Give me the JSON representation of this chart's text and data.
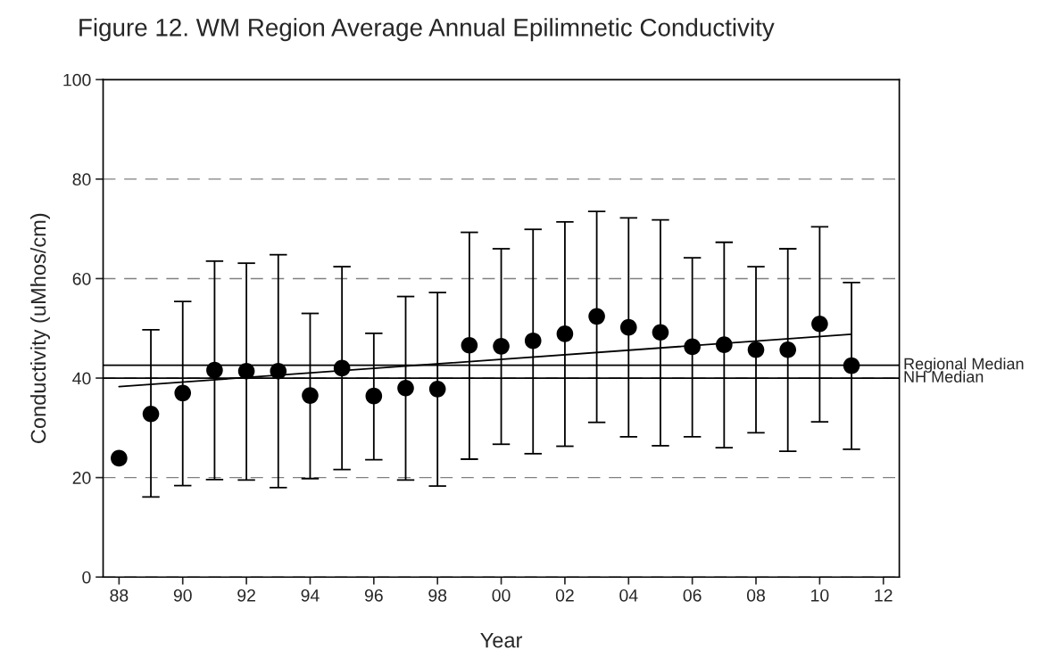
{
  "chart_data": {
    "type": "scatter",
    "title": "Figure 12. WM Region Average Annual Epilimnetic Conductivity",
    "xlabel": "Year",
    "ylabel": "Conductivity (uMhos/cm)",
    "xlim": [
      1987.5,
      2012.5
    ],
    "xticks": [
      {
        "value": 1988,
        "label": "88"
      },
      {
        "value": 1990,
        "label": "90"
      },
      {
        "value": 1992,
        "label": "92"
      },
      {
        "value": 1994,
        "label": "94"
      },
      {
        "value": 1996,
        "label": "96"
      },
      {
        "value": 1998,
        "label": "98"
      },
      {
        "value": 2000,
        "label": "00"
      },
      {
        "value": 2002,
        "label": "02"
      },
      {
        "value": 2004,
        "label": "04"
      },
      {
        "value": 2006,
        "label": "06"
      },
      {
        "value": 2008,
        "label": "08"
      },
      {
        "value": 2010,
        "label": "10"
      },
      {
        "value": 2012,
        "label": "12"
      }
    ],
    "ylim": [
      0,
      100
    ],
    "yticks": [
      0,
      20,
      40,
      60,
      80,
      100
    ],
    "grid": "y",
    "series": [
      {
        "marker": "circle",
        "color": "#000000",
        "x": [
          1988,
          1989,
          1990,
          1991,
          1992,
          1993,
          1994,
          1995,
          1996,
          1997,
          1998,
          1999,
          2000,
          2001,
          2002,
          2003,
          2004,
          2005,
          2006,
          2007,
          2008,
          2009,
          2010,
          2011
        ],
        "values": [
          23.9,
          32.8,
          37.0,
          41.6,
          41.4,
          41.4,
          36.5,
          42.0,
          36.4,
          38.0,
          37.8,
          46.6,
          46.4,
          47.5,
          48.9,
          52.4,
          50.2,
          49.2,
          46.3,
          46.7,
          45.7,
          45.7,
          50.9,
          42.5
        ],
        "errors": [
          null,
          [
            16.1,
            49.7
          ],
          [
            18.4,
            55.4
          ],
          [
            19.6,
            63.5
          ],
          [
            19.5,
            63.1
          ],
          [
            18.0,
            64.8
          ],
          [
            19.8,
            53.0
          ],
          [
            21.6,
            62.4
          ],
          [
            23.6,
            49.0
          ],
          [
            19.5,
            56.4
          ],
          [
            18.3,
            57.2
          ],
          [
            23.7,
            69.3
          ],
          [
            26.7,
            66.0
          ],
          [
            24.8,
            69.9
          ],
          [
            26.3,
            71.4
          ],
          [
            31.1,
            73.5
          ],
          [
            28.2,
            72.2
          ],
          [
            26.4,
            71.8
          ],
          [
            28.2,
            64.2
          ],
          [
            26.0,
            67.3
          ],
          [
            29.0,
            62.4
          ],
          [
            25.3,
            66.0
          ],
          [
            31.2,
            70.4
          ],
          [
            25.7,
            59.2
          ]
        ]
      },
      {
        "type": "line",
        "marker": "none",
        "color": "#000000",
        "x": [
          1988,
          2011
        ],
        "values": [
          38.3,
          48.8
        ]
      }
    ],
    "ref_lines": [
      {
        "axis": "y",
        "value": 42.6,
        "label": "Regional Median",
        "color": "#000000"
      },
      {
        "axis": "y",
        "value": 40.0,
        "label": "NH Median",
        "color": "#000000"
      }
    ]
  }
}
